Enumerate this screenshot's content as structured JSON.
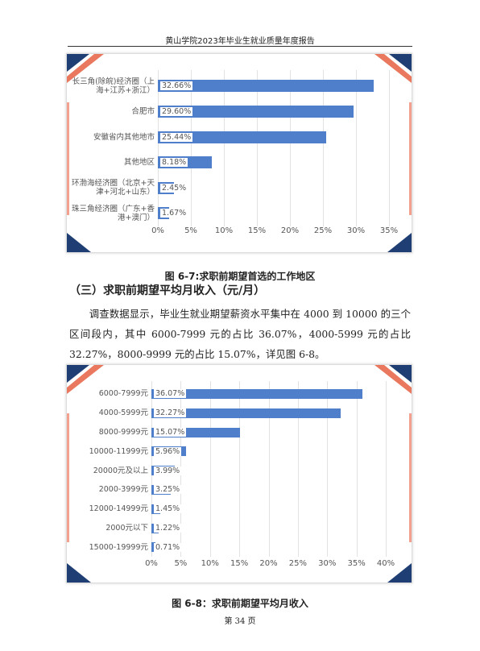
{
  "header": "黄山学院2023年毕业生就业质量年度报告",
  "chart_data": [
    {
      "type": "bar",
      "orientation": "horizontal",
      "color": "#4f7fcb",
      "categories": [
        "长三角(除皖)经济圈（上海+江苏+浙江）",
        "合肥市",
        "安徽省内其他地市",
        "其他地区",
        "环渤海经济圈（北京+天津+河北+山东）",
        "珠三角经济圈（广东+香港+澳门）"
      ],
      "values": [
        32.66,
        29.6,
        25.44,
        8.18,
        2.45,
        1.67
      ],
      "value_labels": [
        "32.66%",
        "29.60%",
        "25.44%",
        "8.18%",
        "2.45%",
        "1.67%"
      ],
      "xlim": [
        0,
        35
      ],
      "xticks": [
        {
          "value": 0,
          "label": "0%"
        },
        {
          "value": 5,
          "label": "5%"
        },
        {
          "value": 10,
          "label": "10%"
        },
        {
          "value": 15,
          "label": "15%"
        },
        {
          "value": 20,
          "label": "20%"
        },
        {
          "value": 25,
          "label": "25%"
        },
        {
          "value": 30,
          "label": "30%"
        },
        {
          "value": 35,
          "label": "35%"
        }
      ],
      "grid": true
    },
    {
      "type": "bar",
      "orientation": "horizontal",
      "color": "#4f7fcb",
      "categories": [
        "6000-7999元",
        "4000-5999元",
        "8000-9999元",
        "10000-11999元",
        "20000元及以上",
        "2000-3999元",
        "12000-14999元",
        "2000元以下",
        "15000-19999元"
      ],
      "values": [
        36.07,
        32.27,
        15.07,
        5.96,
        3.99,
        3.25,
        1.45,
        1.22,
        0.71
      ],
      "value_labels": [
        "36.07%",
        "32.27%",
        "15.07%",
        "5.96%",
        "3.99%",
        "3.25%",
        "1.45%",
        "1.22%",
        "0.71%"
      ],
      "xlim": [
        0,
        40
      ],
      "xticks": [
        {
          "value": 0,
          "label": "0%"
        },
        {
          "value": 5,
          "label": "5%"
        },
        {
          "value": 10,
          "label": "10%"
        },
        {
          "value": 15,
          "label": "15%"
        },
        {
          "value": 20,
          "label": "20%"
        },
        {
          "value": 25,
          "label": "25%"
        },
        {
          "value": 30,
          "label": "30%"
        },
        {
          "value": 35,
          "label": "35%"
        },
        {
          "value": 40,
          "label": "40%"
        }
      ],
      "grid": true
    }
  ],
  "captions": [
    "图 6-7:求职前期望首选的工作地区",
    "图 6-8：求职前期望平均月收入"
  ],
  "section_title": "（三）求职前期望平均月收入（元/月）",
  "paragraph": "调查数据显示，毕业生就业期望薪资水平集中在 4000 到 10000 的三个区间段内，其中 6000-7999 元的占比 36.07%，4000-5999 元的占比 32.27%，8000-9999 元的占比 15.07%，详见图 6-8。",
  "footer": "第 34 页"
}
